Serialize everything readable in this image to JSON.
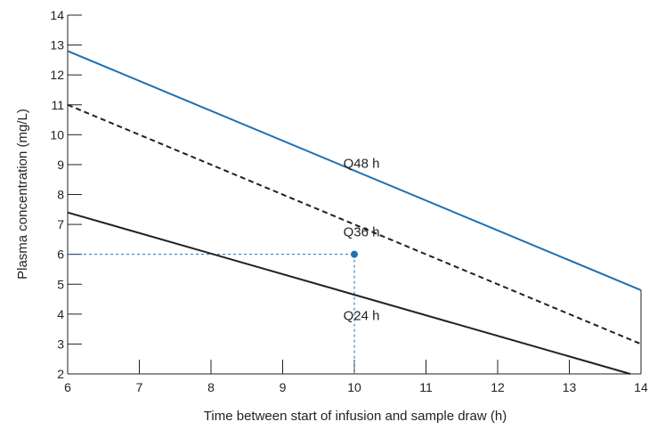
{
  "chart_data": {
    "type": "line",
    "xlabel": "Time between start of infusion and sample draw (h)",
    "ylabel": "Plasma concentration (mg/L)",
    "xlim": [
      6,
      14
    ],
    "ylim": [
      2,
      14
    ],
    "x_ticks": [
      "6",
      "7",
      "8",
      "9",
      "10",
      "11",
      "12",
      "13",
      "14"
    ],
    "y_ticks": [
      "2",
      "3",
      "4",
      "5",
      "6",
      "7",
      "8",
      "9",
      "10",
      "11",
      "12",
      "13",
      "14"
    ],
    "grid": false,
    "series": [
      {
        "color": "#1f6fb2",
        "line_style": "solid",
        "x": [
          6,
          14
        ],
        "y": [
          12.8,
          4.8
        ]
      },
      {
        "color": "#231f20",
        "line_style": "dashed",
        "x": [
          6,
          14
        ],
        "y": [
          11.0,
          3.0
        ]
      },
      {
        "color": "#231f20",
        "line_style": "solid",
        "x": [
          6,
          13.85
        ],
        "y": [
          7.4,
          2.0
        ]
      }
    ],
    "region_labels": [
      {
        "text": "Q48 h",
        "x": 10.1,
        "y": 8.9
      },
      {
        "text": "Q36 h",
        "x": 10.1,
        "y": 6.6
      },
      {
        "text": "Q24 h",
        "x": 10.1,
        "y": 3.8
      }
    ],
    "highlight_point": {
      "x": 10,
      "y": 6,
      "color": "#1f6fb2"
    }
  }
}
